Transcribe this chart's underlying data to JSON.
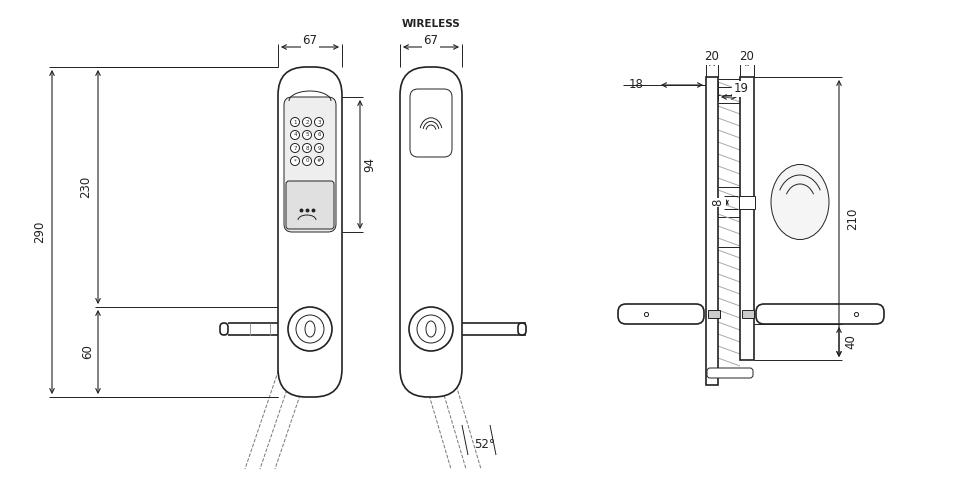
{
  "bg_color": "#ffffff",
  "line_color": "#222222",
  "dim_color": "#222222",
  "lw_main": 1.2,
  "lw_thin": 0.7,
  "lw_dashed": 0.7,
  "fig_w": 9.8,
  "fig_h": 4.97,
  "dims": {
    "width_67_front": "67",
    "width_67_wireless": "67",
    "wireless_label": "WIRELESS",
    "height_94": "94",
    "height_230": "230",
    "height_290": "290",
    "height_60": "60",
    "angle_52": "52°",
    "right_20a": "20",
    "right_20b": "20",
    "right_18": "18",
    "right_19": "19",
    "right_8": "8",
    "right_210": "210",
    "right_40": "40"
  }
}
